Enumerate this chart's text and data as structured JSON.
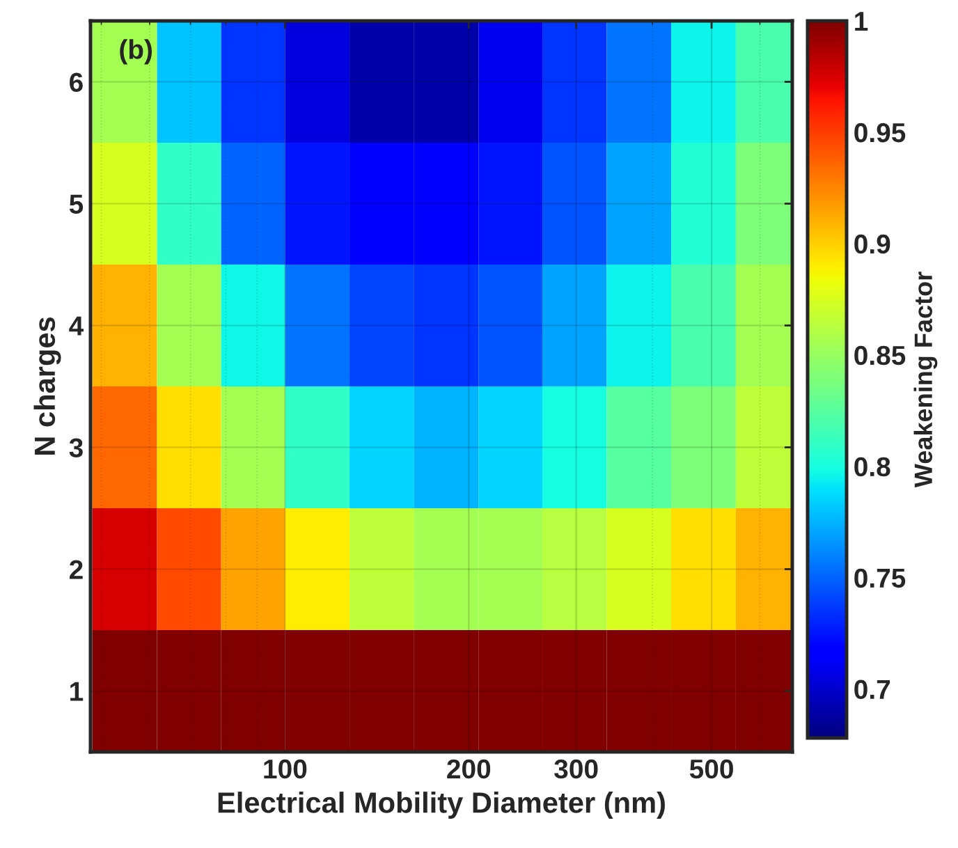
{
  "chart_data": {
    "type": "heatmap",
    "xlabel": "Electrical Mobility Diameter (nm)",
    "ylabel": "N charges",
    "clabel": "Weakening Factor",
    "annotations": [
      "(b)"
    ],
    "x": [
      54.6,
      69.7,
      88.6,
      113,
      144,
      184,
      234,
      298,
      380,
      485,
      619
    ],
    "log": "x",
    "xlim": [
      48,
      678
    ],
    "xticks": [
      100,
      200,
      300,
      500
    ],
    "grid": true,
    "y_categories": [
      "6",
      "5",
      "4",
      "3",
      "2",
      "1"
    ],
    "cells": [
      [
        0.855,
        0.78,
        0.735,
        0.705,
        0.69,
        0.69,
        0.71,
        0.735,
        0.755,
        0.795,
        0.82
      ],
      [
        0.875,
        0.81,
        0.75,
        0.725,
        0.715,
        0.715,
        0.725,
        0.745,
        0.77,
        0.805,
        0.84
      ],
      [
        0.91,
        0.855,
        0.797,
        0.755,
        0.74,
        0.735,
        0.745,
        0.77,
        0.795,
        0.82,
        0.855
      ],
      [
        0.935,
        0.895,
        0.855,
        0.81,
        0.785,
        0.775,
        0.785,
        0.8,
        0.825,
        0.84,
        0.865
      ],
      [
        0.975,
        0.945,
        0.915,
        0.89,
        0.865,
        0.855,
        0.855,
        0.862,
        0.875,
        0.895,
        0.91
      ],
      [
        1,
        1,
        1,
        1,
        1,
        1,
        1,
        1,
        1,
        1,
        1
      ]
    ],
    "clim": [
      0.678,
      1
    ],
    "cticks": [
      0.7,
      0.75,
      0.8,
      0.85,
      0.9,
      0.95,
      1
    ]
  }
}
